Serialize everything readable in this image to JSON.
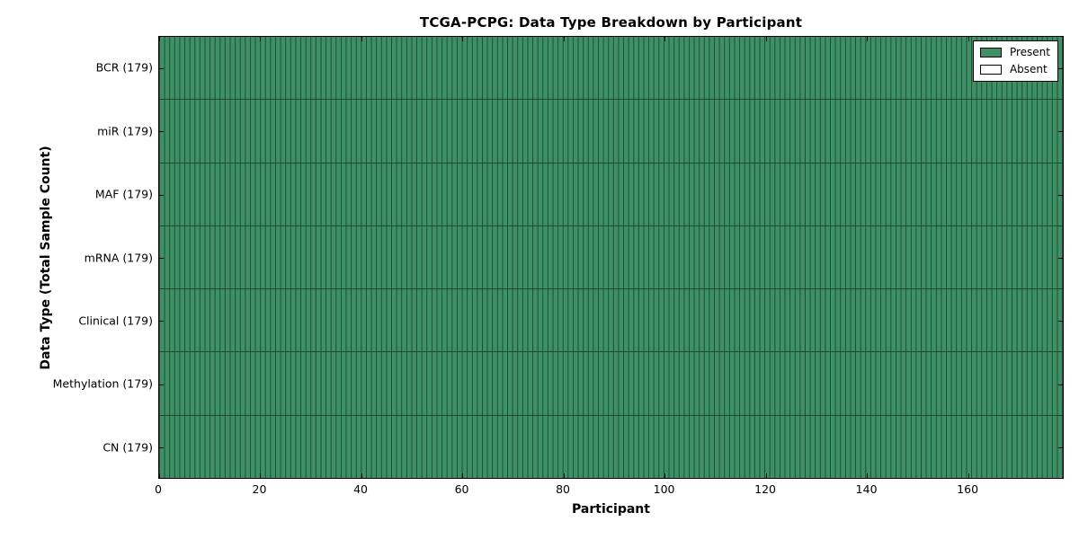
{
  "title": "TCGA-PCPG: Data Type Breakdown by Participant",
  "axes": {
    "xlabel": "Participant",
    "ylabel": "Data Type (Total Sample Count)"
  },
  "legend": {
    "items": [
      {
        "label": "Present",
        "color": "#3E9166"
      },
      {
        "label": "Absent",
        "color": "#FFFFFF"
      }
    ]
  },
  "colors": {
    "present_fill": "#3E9166",
    "absent_fill": "#FFFFFF",
    "cell_edge": "#1C4A31",
    "spine": "#000000",
    "background": "#FFFFFF"
  },
  "chart_data": {
    "type": "heatmap",
    "title": "TCGA-PCPG: Data Type Breakdown by Participant",
    "xlabel": "Participant",
    "ylabel": "Data Type (Total Sample Count)",
    "x_range": [
      0,
      179
    ],
    "x_ticks": [
      0,
      20,
      40,
      60,
      80,
      100,
      120,
      140,
      160
    ],
    "participants": 179,
    "cell_states": [
      "Present",
      "Absent"
    ],
    "legend_position": "upper right",
    "grid": false,
    "rows": [
      {
        "label": "BCR (179)",
        "data_type": "BCR",
        "total_samples": 179,
        "present_count": 179,
        "absent_count": 0
      },
      {
        "label": "miR (179)",
        "data_type": "miR",
        "total_samples": 179,
        "present_count": 179,
        "absent_count": 0
      },
      {
        "label": "MAF (179)",
        "data_type": "MAF",
        "total_samples": 179,
        "present_count": 179,
        "absent_count": 0
      },
      {
        "label": "mRNA (179)",
        "data_type": "mRNA",
        "total_samples": 179,
        "present_count": 179,
        "absent_count": 0
      },
      {
        "label": "Clinical (179)",
        "data_type": "Clinical",
        "total_samples": 179,
        "present_count": 179,
        "absent_count": 0
      },
      {
        "label": "Methylation (179)",
        "data_type": "Methylation",
        "total_samples": 179,
        "present_count": 179,
        "absent_count": 0
      },
      {
        "label": "CN (179)",
        "data_type": "CN",
        "total_samples": 179,
        "present_count": 179,
        "absent_count": 0
      }
    ]
  }
}
